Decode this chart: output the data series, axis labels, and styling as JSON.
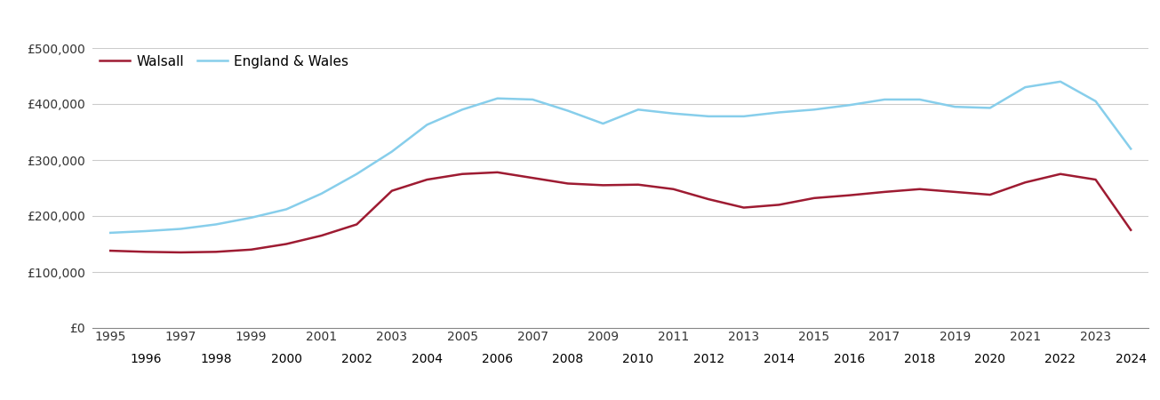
{
  "years": [
    1995,
    1996,
    1997,
    1998,
    1999,
    2000,
    2001,
    2002,
    2003,
    2004,
    2005,
    2006,
    2007,
    2008,
    2009,
    2010,
    2011,
    2012,
    2013,
    2014,
    2015,
    2016,
    2017,
    2018,
    2019,
    2020,
    2021,
    2022,
    2023,
    2024
  ],
  "walsall": [
    138000,
    136000,
    135000,
    136000,
    140000,
    150000,
    165000,
    185000,
    245000,
    265000,
    275000,
    278000,
    268000,
    258000,
    255000,
    256000,
    248000,
    230000,
    215000,
    220000,
    232000,
    237000,
    243000,
    248000,
    243000,
    238000,
    260000,
    275000,
    265000,
    175000
  ],
  "england_wales": [
    170000,
    173000,
    177000,
    185000,
    197000,
    212000,
    240000,
    275000,
    315000,
    363000,
    390000,
    410000,
    408000,
    388000,
    365000,
    390000,
    383000,
    378000,
    378000,
    385000,
    390000,
    398000,
    408000,
    408000,
    395000,
    393000,
    430000,
    440000,
    405000,
    320000
  ],
  "walsall_color": "#9e1b32",
  "england_wales_color": "#87CEEB",
  "background_color": "#ffffff",
  "grid_color": "#cccccc",
  "ylim": [
    0,
    500000
  ],
  "yticks": [
    0,
    100000,
    200000,
    300000,
    400000,
    500000
  ],
  "legend_labels": [
    "Walsall",
    "England & Wales"
  ],
  "x_odd_ticks": [
    1995,
    1997,
    1999,
    2001,
    2003,
    2005,
    2007,
    2009,
    2011,
    2013,
    2015,
    2017,
    2019,
    2021,
    2023
  ],
  "x_even_ticks": [
    1996,
    1998,
    2000,
    2002,
    2004,
    2006,
    2008,
    2010,
    2012,
    2014,
    2016,
    2018,
    2020,
    2022,
    2024
  ],
  "xlim_left": 1994.5,
  "xlim_right": 2024.5,
  "line_width": 1.8,
  "tick_fontsize": 10,
  "legend_fontsize": 11
}
